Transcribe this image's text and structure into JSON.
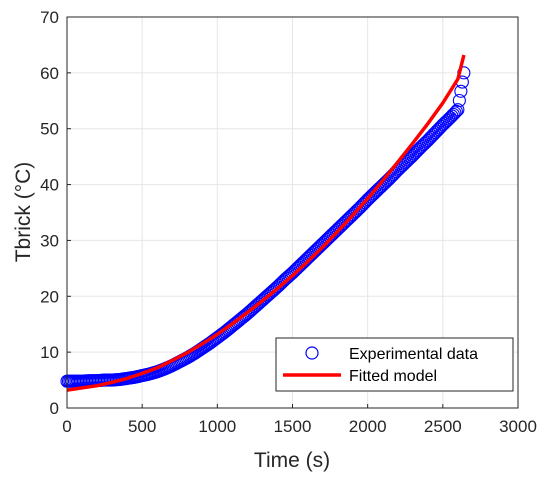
{
  "chart_data": {
    "type": "scatter",
    "xlabel": "Time (s)",
    "ylabel": "Tbrick (°C)",
    "xlim": [
      0,
      3000
    ],
    "ylim": [
      0,
      70
    ],
    "x_ticks": [
      0,
      500,
      1000,
      1500,
      2000,
      2500,
      3000
    ],
    "y_ticks": [
      0,
      10,
      20,
      30,
      40,
      50,
      60,
      70
    ],
    "grid": true,
    "legend_position": "bottom-right",
    "series": [
      {
        "name": "Experimental data",
        "kind": "markers",
        "marker": "circle",
        "color": "#0000ff",
        "x": [
          0,
          50,
          100,
          150,
          200,
          250,
          300,
          350,
          400,
          450,
          500,
          550,
          600,
          650,
          700,
          750,
          800,
          850,
          900,
          950,
          1000,
          1050,
          1100,
          1150,
          1200,
          1250,
          1300,
          1350,
          1400,
          1450,
          1500,
          1550,
          1600,
          1650,
          1700,
          1750,
          1800,
          1850,
          1900,
          1950,
          2000,
          2050,
          2100,
          2150,
          2200,
          2250,
          2300,
          2350,
          2400,
          2450,
          2500,
          2550,
          2600,
          2640
        ],
        "y": [
          4.8,
          4.8,
          4.8,
          4.9,
          4.9,
          5.0,
          5.0,
          5.1,
          5.3,
          5.5,
          5.8,
          6.1,
          6.5,
          7.0,
          7.6,
          8.3,
          9.0,
          9.8,
          10.7,
          11.6,
          12.6,
          13.6,
          14.7,
          15.8,
          16.9,
          18.1,
          19.3,
          20.5,
          21.7,
          23.0,
          24.2,
          25.5,
          26.8,
          28.1,
          29.4,
          30.7,
          32.0,
          33.3,
          34.6,
          35.9,
          37.3,
          38.6,
          39.9,
          41.2,
          42.6,
          43.9,
          45.2,
          46.6,
          47.9,
          49.3,
          50.7,
          52.0,
          53.4,
          60.0
        ]
      },
      {
        "name": "Fitted model",
        "kind": "line",
        "color": "#ff0000",
        "x": [
          0,
          100,
          200,
          300,
          400,
          500,
          600,
          700,
          800,
          900,
          1000,
          1100,
          1200,
          1300,
          1400,
          1500,
          1600,
          1700,
          1800,
          1900,
          2000,
          2100,
          2200,
          2300,
          2400,
          2500,
          2600,
          2640
        ],
        "y": [
          3.2,
          3.6,
          4.0,
          4.6,
          5.3,
          6.2,
          7.2,
          8.5,
          9.9,
          11.5,
          13.2,
          15.1,
          17.1,
          19.2,
          21.4,
          23.7,
          26.2,
          28.8,
          31.6,
          34.5,
          37.5,
          40.7,
          44.0,
          47.4,
          50.9,
          54.6,
          58.9,
          63.2
        ]
      }
    ]
  }
}
